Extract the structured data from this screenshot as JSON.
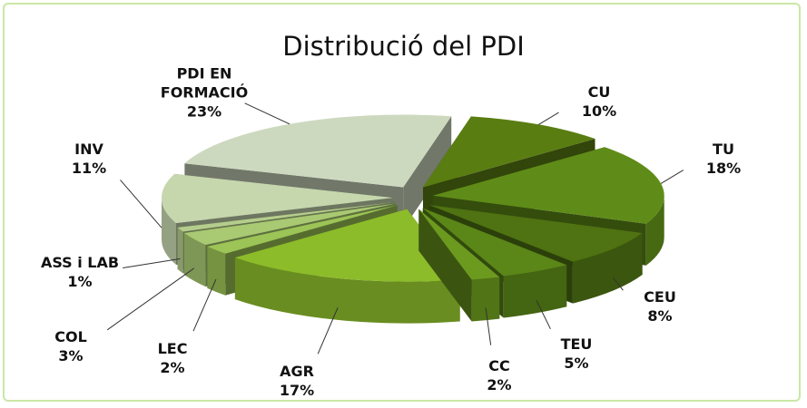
{
  "chart_data": {
    "type": "pie",
    "title": "Distribució del PDI",
    "categories": [
      "CU",
      "TU",
      "CEU",
      "TEU",
      "CC",
      "AGR",
      "LEC",
      "COL",
      "ASS i LAB",
      "INV",
      "PDI EN FORMACIÓ"
    ],
    "values": [
      10,
      18,
      8,
      5,
      2,
      17,
      2,
      3,
      1,
      11,
      23
    ],
    "value_labels": [
      "10%",
      "18%",
      "8%",
      "5%",
      "2%",
      "17%",
      "2%",
      "3%",
      "1%",
      "11%",
      "23%"
    ],
    "colors": [
      "#5a7d12",
      "#5f8c18",
      "#4f7212",
      "#5b8618",
      "#6c9a1f",
      "#8cbc2a",
      "#9cc456",
      "#a9c972",
      "#b5cd8c",
      "#c6d7ae",
      "#cdd9bf"
    ]
  }
}
